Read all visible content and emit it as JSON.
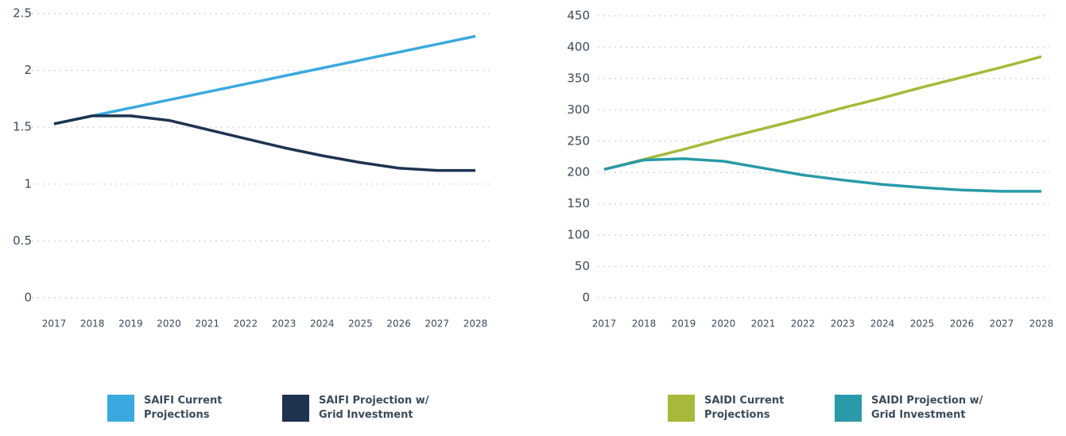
{
  "chart_data": [
    {
      "type": "line",
      "categories": [
        "2017",
        "2018",
        "2019",
        "2020",
        "2021",
        "2022",
        "2023",
        "2024",
        "2025",
        "2026",
        "2027",
        "2028"
      ],
      "series": [
        {
          "name": "SAIFI Current Projections",
          "color": "#3aa9e0",
          "values": [
            1.53,
            1.6,
            1.67,
            1.74,
            1.81,
            1.88,
            1.95,
            2.02,
            2.09,
            2.16,
            2.23,
            2.3
          ]
        },
        {
          "name": "SAIFI Projection w/ Grid Investment",
          "color": "#1e3350",
          "values": [
            1.53,
            1.6,
            1.6,
            1.56,
            1.48,
            1.4,
            1.32,
            1.25,
            1.19,
            1.14,
            1.12,
            1.12
          ]
        }
      ],
      "ylim": [
        0,
        2.5
      ],
      "yticks": [
        0,
        0.5,
        1,
        1.5,
        2,
        2.5
      ],
      "grid": true
    },
    {
      "type": "line",
      "categories": [
        "2017",
        "2018",
        "2019",
        "2020",
        "2021",
        "2022",
        "2023",
        "2024",
        "2025",
        "2026",
        "2027",
        "2028"
      ],
      "series": [
        {
          "name": "SAIDI Current Projections",
          "color": "#a8b83a",
          "values": [
            205,
            221,
            237,
            254,
            270,
            286,
            303,
            319,
            336,
            352,
            368,
            385
          ]
        },
        {
          "name": "SAIDI Projection w/ Grid Investment",
          "color": "#2a9aa8",
          "values": [
            205,
            220,
            222,
            218,
            207,
            196,
            188,
            181,
            176,
            172,
            170,
            170
          ]
        }
      ],
      "ylim": [
        0,
        450
      ],
      "yticks": [
        0,
        50,
        100,
        150,
        200,
        250,
        300,
        350,
        400,
        450
      ],
      "grid": true
    }
  ]
}
